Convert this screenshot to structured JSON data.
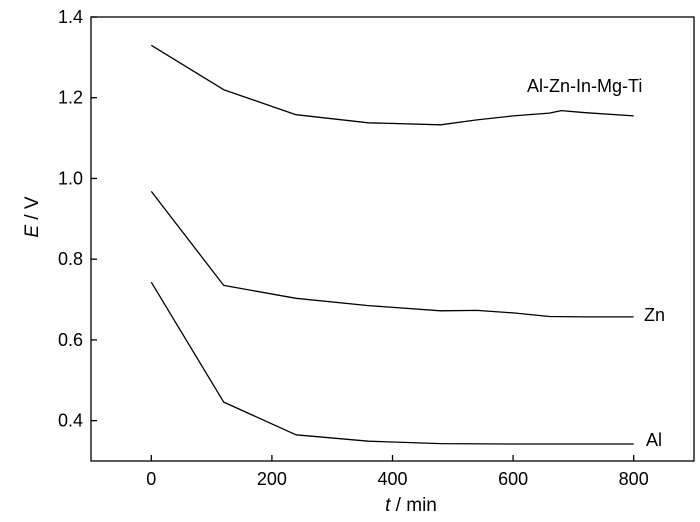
{
  "chart_data": {
    "type": "line",
    "title": "",
    "xlabel": {
      "var": "t",
      "unit": " / min"
    },
    "ylabel": {
      "var": "E",
      "unit": " / V"
    },
    "xlim": [
      -100,
      900
    ],
    "ylim": [
      0.3,
      1.4
    ],
    "xticks": [
      0,
      200,
      400,
      600,
      800
    ],
    "xtick_labels": [
      "0",
      "200",
      "400",
      "600",
      "800"
    ],
    "yticks": [
      0.4,
      0.6,
      0.8,
      1.0,
      1.2,
      1.4
    ],
    "ytick_labels": [
      "0.4",
      "0.6",
      "0.8",
      "1.0",
      "1.2",
      "1.4"
    ],
    "grid": false,
    "legend": "none",
    "series": [
      {
        "name": "Al-Zn-In-Mg-Ti",
        "x": [
          0,
          120,
          240,
          360,
          480,
          540,
          600,
          660,
          680,
          720,
          800
        ],
        "y": [
          1.33,
          1.22,
          1.158,
          1.138,
          1.133,
          1.145,
          1.155,
          1.162,
          1.168,
          1.163,
          1.155
        ]
      },
      {
        "name": "Zn",
        "x": [
          0,
          120,
          240,
          360,
          480,
          540,
          600,
          660,
          720,
          800
        ],
        "y": [
          0.968,
          0.735,
          0.703,
          0.685,
          0.672,
          0.673,
          0.667,
          0.658,
          0.657,
          0.657
        ]
      },
      {
        "name": "Al",
        "x": [
          0,
          120,
          240,
          360,
          480,
          600,
          720,
          800
        ],
        "y": [
          0.743,
          0.446,
          0.365,
          0.349,
          0.343,
          0.342,
          0.342,
          0.342
        ]
      }
    ]
  }
}
